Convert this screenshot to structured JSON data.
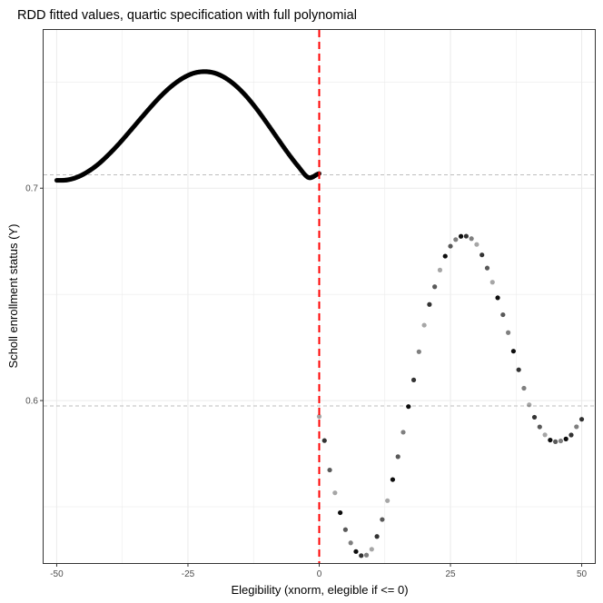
{
  "chart_data": {
    "type": "scatter",
    "title": "RDD fitted values, quartic specification with full polynomial",
    "xlabel": "Elegibility (xnorm, elegible if <= 0)",
    "ylabel": "Scholl enrollment status (Y)",
    "xlim": [
      -52.5,
      52.5
    ],
    "ylim": [
      0.5235,
      0.7745
    ],
    "x_ticks": [
      {
        "value": -50,
        "label": "-50"
      },
      {
        "value": -25,
        "label": "-25"
      },
      {
        "value": 0,
        "label": "0"
      },
      {
        "value": 25,
        "label": "25"
      },
      {
        "value": 50,
        "label": "50"
      }
    ],
    "y_ticks": [
      {
        "value": 0.6,
        "label": "0.6"
      },
      {
        "value": 0.7,
        "label": "0.7"
      }
    ],
    "grid": true,
    "cutoff_line": {
      "x": 0,
      "color": "#ff0000",
      "style": "dashed"
    },
    "reference_lines": [
      {
        "y": 0.7063,
        "color": "#bdbdbd",
        "style": "dashed"
      },
      {
        "y": 0.5975,
        "color": "#bdbdbd",
        "style": "dashed"
      }
    ],
    "series": [
      {
        "segment": "left",
        "x": [
          -50,
          -48,
          -46,
          -44,
          -42,
          -40,
          -38,
          -36,
          -34,
          -32,
          -30,
          -28,
          -26,
          -24,
          -22,
          -20,
          -18,
          -16,
          -14,
          -12,
          -10,
          -8,
          -6,
          -4,
          -2,
          0
        ],
        "y": [
          0.7037,
          0.7039,
          0.7053,
          0.7079,
          0.7115,
          0.7161,
          0.7213,
          0.727,
          0.7328,
          0.7385,
          0.7438,
          0.7483,
          0.7518,
          0.7541,
          0.7549,
          0.7543,
          0.7521,
          0.7485,
          0.7436,
          0.7376,
          0.7308,
          0.7237,
          0.7167,
          0.7103,
          0.705,
          0.7069
        ]
      },
      {
        "segment": "right",
        "x": [
          0,
          2,
          4,
          6,
          8,
          10,
          12,
          14,
          16,
          18,
          20,
          22,
          24,
          26,
          28,
          30,
          32,
          34,
          36,
          38,
          40,
          42,
          44,
          46,
          48,
          50
        ],
        "y": [
          0.5925,
          0.5673,
          0.5472,
          0.533,
          0.527,
          0.53,
          0.544,
          0.5628,
          0.5851,
          0.6097,
          0.6355,
          0.6536,
          0.668,
          0.6758,
          0.6774,
          0.6735,
          0.6624,
          0.6484,
          0.632,
          0.6145,
          0.598,
          0.5876,
          0.5814,
          0.581,
          0.5838,
          0.5912
        ]
      }
    ]
  }
}
